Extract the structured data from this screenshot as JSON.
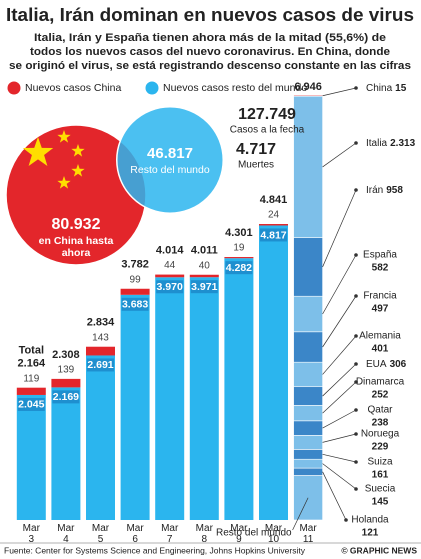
{
  "chart_data": {
    "type": "bar",
    "title": "Italia, Irán dominan en nuevos casos de virus",
    "subtitle": [
      "Italia, Irán y España tienen ahora más de la mitad (55,6%) de",
      "todos los nuevos casos del nuevo coronavirus. En China, donde",
      "se originó el virus, se está registrando descenso constante en las cifras"
    ],
    "categories": [
      "Mar 3",
      "Mar 4",
      "Mar 5",
      "Mar 6",
      "Mar 7",
      "Mar 8",
      "Mar 9",
      "Mar 10",
      "Mar 11"
    ],
    "series": [
      {
        "name": "Nuevos casos China",
        "color": "#e3262b",
        "values": [
          119,
          139,
          143,
          99,
          44,
          40,
          19,
          24,
          15
        ]
      },
      {
        "name": "Nuevos casos resto del mundo",
        "color": "#2bb5ee",
        "values": [
          2045,
          2169,
          2691,
          3683,
          3970,
          3971,
          4282,
          4817,
          null
        ],
        "value_labels": [
          "2.045",
          "2.169",
          "2.691",
          "3.683",
          "3.970",
          "3.971",
          "4.282",
          "4.817",
          null
        ]
      }
    ],
    "totals": {
      "label": "Total",
      "values": [
        2164,
        2308,
        2834,
        3782,
        4014,
        4011,
        4301,
        4841,
        6946
      ],
      "value_labels": [
        "2.164",
        "2.308",
        "2.834",
        "3.782",
        "4.014",
        "4.011",
        "4.301",
        "4.841",
        "6.946"
      ]
    },
    "ylim": [
      0,
      7000
    ],
    "breakdown": {
      "category": "Mar 11",
      "items": [
        {
          "name": "China",
          "value": 15,
          "value_label": "15",
          "color": "#e3262b"
        },
        {
          "name": "Italia",
          "value": 2313,
          "value_label": "2.313",
          "color": "#7dbfe9"
        },
        {
          "name": "Irán",
          "value": 958,
          "value_label": "958",
          "color": "#3b86c8"
        },
        {
          "name": "España",
          "value": 582,
          "value_label": "582",
          "color": "#7dbfe9"
        },
        {
          "name": "Francia",
          "value": 497,
          "value_label": "497",
          "color": "#3b86c8"
        },
        {
          "name": "Alemania",
          "value": 401,
          "value_label": "401",
          "color": "#7dbfe9"
        },
        {
          "name": "EUA",
          "value": 306,
          "value_label": "306",
          "color": "#3b86c8"
        },
        {
          "name": "Dinamarca",
          "value": 252,
          "value_label": "252",
          "color": "#7dbfe9"
        },
        {
          "name": "Qatar",
          "value": 238,
          "value_label": "238",
          "color": "#3b86c8"
        },
        {
          "name": "Noruega",
          "value": 229,
          "value_label": "229",
          "color": "#7dbfe9"
        },
        {
          "name": "Suiza",
          "value": 161,
          "value_label": "161",
          "color": "#3b86c8"
        },
        {
          "name": "Suecia",
          "value": 145,
          "value_label": "145",
          "color": "#7dbfe9"
        },
        {
          "name": "Holanda",
          "value": 121,
          "value_label": "121",
          "color": "#3b86c8"
        },
        {
          "name": "Resto del mundo",
          "value": 728,
          "color": "#7dbfe9"
        }
      ]
    },
    "circles": [
      {
        "value": 80932,
        "label": "80.932",
        "text": "en China hasta ahora",
        "color": "#e3262b"
      },
      {
        "value": 46817,
        "label": "46.817",
        "text": "Resto del mundo",
        "color": "#2bb5ee"
      }
    ],
    "annotations": [
      {
        "label": "127.749",
        "text": "Casos a la fecha"
      },
      {
        "label": "4.717",
        "text": "Muertes"
      }
    ],
    "legend": "top-left",
    "source": "Fuente: Center for Systems Science and Engineering, Johns Hopkins University",
    "credit": "© GRAPHIC NEWS"
  }
}
